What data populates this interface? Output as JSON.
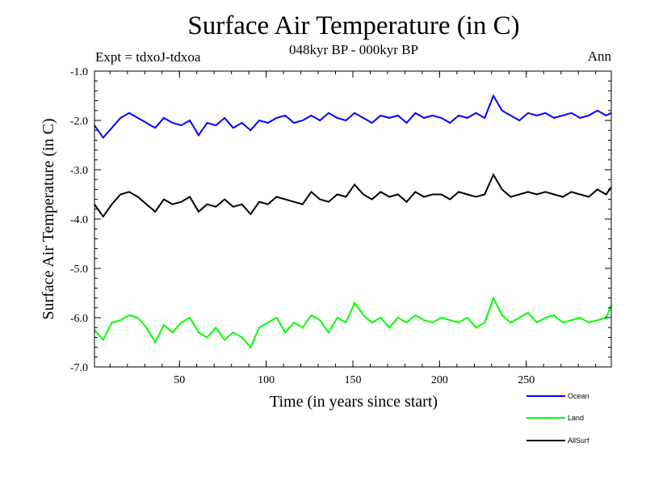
{
  "header": {
    "title": "Surface Air Temperature (in C)",
    "subtitle": "048kyr BP - 000kyr BP",
    "experiment": "Expt = tdxoJ-tdxoa",
    "season": "Ann"
  },
  "chart_data": {
    "type": "line",
    "title": "Surface Air Temperature (in C)",
    "xlabel": "Time (in years since start)",
    "ylabel": "Surface Air Temperature (in C)",
    "xlim": [
      1,
      299
    ],
    "ylim": [
      -7.0,
      -1.0
    ],
    "x_ticks": [
      50,
      100,
      150,
      200,
      250
    ],
    "y_ticks": [
      -1.0,
      -2.0,
      -3.0,
      -4.0,
      -5.0,
      -6.0,
      -7.0
    ],
    "y_tick_labels": [
      "-1.0",
      "-2.0",
      "-3.0",
      "-4.0",
      "-5.0",
      "-6.0",
      "-7.0"
    ],
    "grid": false,
    "legend_position": "bottom-right",
    "x": [
      1,
      6,
      11,
      16,
      21,
      26,
      31,
      36,
      41,
      46,
      51,
      56,
      61,
      66,
      71,
      76,
      81,
      86,
      91,
      96,
      101,
      106,
      111,
      116,
      121,
      126,
      131,
      136,
      141,
      146,
      151,
      156,
      161,
      166,
      171,
      176,
      181,
      186,
      191,
      196,
      201,
      206,
      211,
      216,
      221,
      226,
      231,
      236,
      241,
      246,
      251,
      256,
      261,
      266,
      271,
      276,
      281,
      286,
      291,
      296,
      299
    ],
    "series": [
      {
        "name": "Ocean",
        "color": "#0000ff",
        "values": [
          -2.1,
          -2.35,
          -2.15,
          -1.95,
          -1.85,
          -1.95,
          -2.05,
          -2.15,
          -1.95,
          -2.05,
          -2.1,
          -2.0,
          -2.3,
          -2.05,
          -2.1,
          -1.95,
          -2.15,
          -2.05,
          -2.2,
          -2.0,
          -2.05,
          -1.95,
          -1.9,
          -2.05,
          -2.0,
          -1.9,
          -2.0,
          -1.85,
          -1.95,
          -2.0,
          -1.85,
          -1.95,
          -2.05,
          -1.9,
          -1.95,
          -1.9,
          -2.05,
          -1.85,
          -1.95,
          -1.9,
          -1.95,
          -2.05,
          -1.9,
          -1.95,
          -1.85,
          -1.95,
          -1.5,
          -1.8,
          -1.9,
          -2.0,
          -1.85,
          -1.9,
          -1.85,
          -1.95,
          -1.9,
          -1.85,
          -1.95,
          -1.9,
          -1.8,
          -1.9,
          -1.85
        ]
      },
      {
        "name": "Land",
        "color": "#00ff00",
        "values": [
          -6.25,
          -6.45,
          -6.1,
          -6.05,
          -5.95,
          -6.0,
          -6.2,
          -6.5,
          -6.15,
          -6.3,
          -6.1,
          -6.0,
          -6.3,
          -6.4,
          -6.2,
          -6.45,
          -6.3,
          -6.4,
          -6.6,
          -6.2,
          -6.1,
          -6.0,
          -6.3,
          -6.1,
          -6.2,
          -5.95,
          -6.05,
          -6.3,
          -6.0,
          -6.1,
          -5.7,
          -5.95,
          -6.1,
          -6.0,
          -6.2,
          -6.0,
          -6.1,
          -5.95,
          -6.05,
          -6.1,
          -6.0,
          -6.05,
          -6.1,
          -6.0,
          -6.2,
          -6.1,
          -5.6,
          -5.95,
          -6.1,
          -6.0,
          -5.9,
          -6.1,
          -6.0,
          -5.95,
          -6.1,
          -6.05,
          -6.0,
          -6.1,
          -6.05,
          -6.0,
          -5.75
        ]
      },
      {
        "name": "AllSurf",
        "color": "#000000",
        "values": [
          -3.7,
          -3.95,
          -3.7,
          -3.5,
          -3.45,
          -3.55,
          -3.7,
          -3.85,
          -3.6,
          -3.7,
          -3.65,
          -3.55,
          -3.85,
          -3.7,
          -3.75,
          -3.6,
          -3.75,
          -3.7,
          -3.9,
          -3.65,
          -3.7,
          -3.55,
          -3.6,
          -3.65,
          -3.7,
          -3.45,
          -3.6,
          -3.65,
          -3.5,
          -3.55,
          -3.3,
          -3.5,
          -3.6,
          -3.45,
          -3.55,
          -3.5,
          -3.65,
          -3.45,
          -3.55,
          -3.5,
          -3.5,
          -3.6,
          -3.45,
          -3.5,
          -3.55,
          -3.5,
          -3.1,
          -3.4,
          -3.55,
          -3.5,
          -3.45,
          -3.5,
          -3.45,
          -3.5,
          -3.55,
          -3.45,
          -3.5,
          -3.55,
          -3.4,
          -3.5,
          -3.35
        ]
      }
    ]
  }
}
